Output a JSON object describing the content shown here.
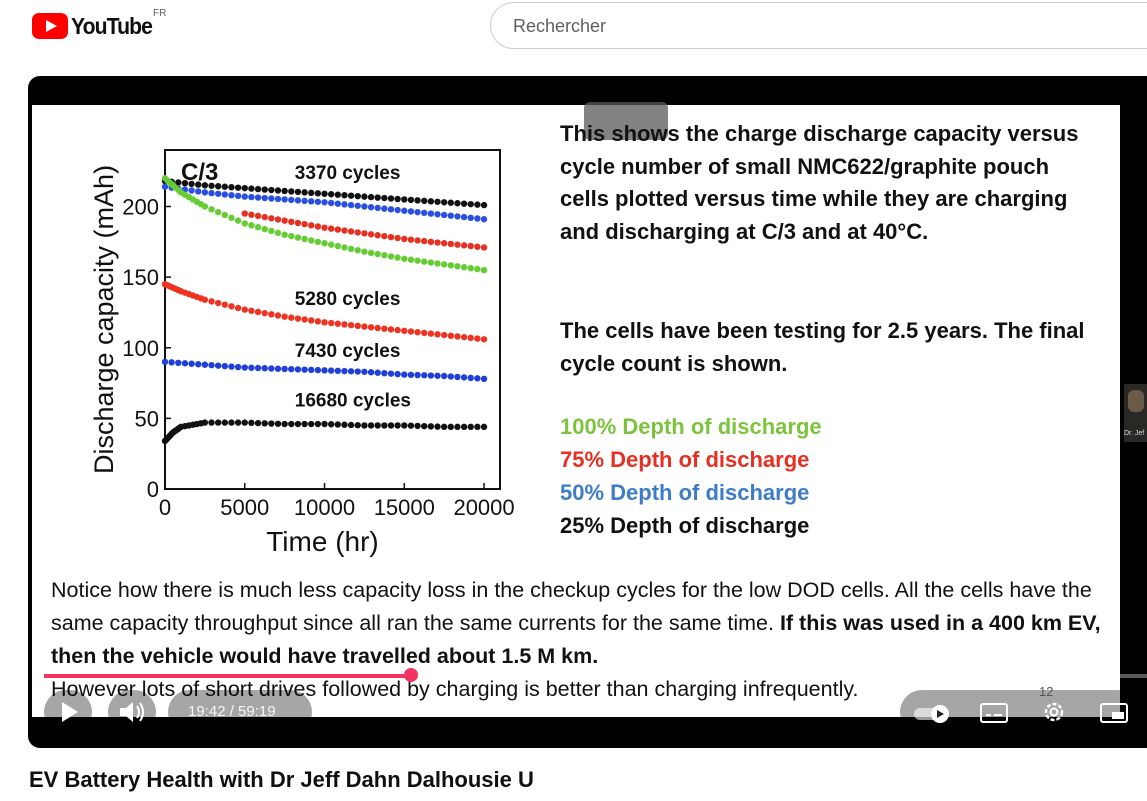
{
  "header": {
    "logo_text": "YouTube",
    "country_code": "FR",
    "search_placeholder": "Rechercher"
  },
  "video": {
    "title": "EV Battery Health with Dr Jeff Dahn Dalhousie U",
    "current_time": "19:42",
    "duration": "59:19",
    "time_display": "19:42 / 59:19",
    "progress": 0.333,
    "settings_badge": "12",
    "camera_label": "Dr. Jef"
  },
  "slide": {
    "paragraph1": "This shows the charge discharge capacity versus cycle number of small NMC622/graphite pouch cells plotted versus time while they are charging and discharging at C/3 and at 40°C.",
    "paragraph2": "The cells have been testing for 2.5 years.  The final cycle count is shown.",
    "legend": [
      {
        "label": "100% Depth of discharge",
        "color": "#7cc43e"
      },
      {
        "label": "75% Depth of discharge",
        "color": "#e53022"
      },
      {
        "label": "50% Depth of discharge",
        "color": "#3d7cc8"
      },
      {
        "label": "25% Depth of discharge",
        "color": "#111111"
      }
    ],
    "bottom_plain": "Notice how there is much less capacity loss in the checkup cycles for the low DOD cells.  All the cells have the same capacity throughput since all ran the same currents for the same time. ",
    "bottom_bold": "If this was used in a 400 km EV, then the vehicle would have travelled about 1.5 M km.",
    "bottom_last": "However lots of short drives followed by charging is better than charging infrequently."
  },
  "chart_data": {
    "type": "scatter",
    "title": "C/3",
    "xlabel": "Time (hr)",
    "ylabel": "Discharge capacity (mAh)",
    "xlim": [
      0,
      21000
    ],
    "ylim": [
      0,
      240
    ],
    "xticks": [
      0,
      5000,
      10000,
      15000,
      20000
    ],
    "yticks": [
      0,
      50,
      100,
      150,
      200
    ],
    "grid": false,
    "series": [
      {
        "name": "3370 cycles",
        "color": "#111111",
        "x": [
          0,
          2500,
          5000,
          7500,
          10000,
          12500,
          15000,
          17500,
          20000
        ],
        "y": [
          218,
          215,
          213,
          211,
          209,
          207,
          205,
          203,
          201
        ]
      },
      {
        "name": "3370 cycles",
        "color": "#2a4fe0",
        "x": [
          0,
          2500,
          5000,
          7500,
          10000,
          12500,
          15000,
          17500,
          20000
        ],
        "y": [
          214,
          210,
          207,
          205,
          203,
          200,
          197,
          194,
          191
        ]
      },
      {
        "name": "3370 cycles",
        "color": "#e53022",
        "x": [
          5000,
          7500,
          10000,
          12500,
          15000,
          17500,
          20000
        ],
        "y": [
          195,
          190,
          185,
          181,
          177,
          174,
          171
        ]
      },
      {
        "name": "3370 cycles",
        "color": "#66cc33",
        "x": [
          0,
          1000,
          2500,
          5000,
          7500,
          10000,
          12500,
          15000,
          17500,
          20000
        ],
        "y": [
          220,
          210,
          200,
          188,
          180,
          174,
          168,
          163,
          159,
          155
        ]
      },
      {
        "name": "5280 cycles",
        "color": "#ee3322",
        "x": [
          0,
          1000,
          2500,
          5000,
          7500,
          10000,
          12500,
          15000,
          17500,
          20000
        ],
        "y": [
          145,
          140,
          134,
          127,
          122,
          118,
          115,
          112,
          109,
          106
        ]
      },
      {
        "name": "7430 cycles",
        "color": "#1f3fd8",
        "x": [
          0,
          2500,
          5000,
          7500,
          10000,
          12500,
          15000,
          17500,
          20000
        ],
        "y": [
          90,
          88,
          86,
          85,
          84,
          83,
          81,
          80,
          78
        ]
      },
      {
        "name": "16680 cycles",
        "color": "#111111",
        "x": [
          0,
          500,
          1000,
          2500,
          5000,
          7500,
          10000,
          12500,
          15000,
          17500,
          20000
        ],
        "y": [
          34,
          40,
          44,
          47,
          47,
          46,
          46,
          45,
          45,
          44,
          44
        ]
      }
    ],
    "annotations": [
      "3370 cycles",
      "5280 cycles",
      "7430 cycles",
      "16680 cycles"
    ]
  }
}
